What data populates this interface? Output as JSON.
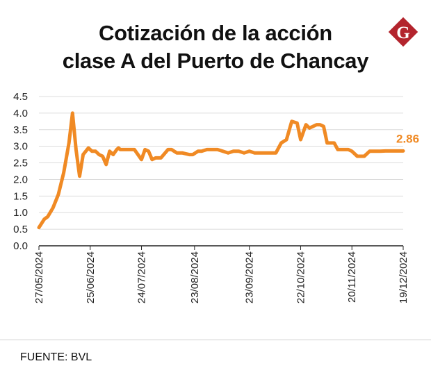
{
  "title_lines": [
    "Cotización de la acción",
    "clase A del Puerto de Chancay"
  ],
  "logo": {
    "letter": "G",
    "color": "#b3242d"
  },
  "source": "FUENTE: BVL",
  "colors": {
    "line": "#f08a24",
    "grid": "#dcdcdc",
    "axis": "#222222"
  },
  "chart_data": {
    "type": "line",
    "title": "Cotización de la acción clase A del Puerto de Chancay",
    "xlabel": "",
    "ylabel": "",
    "ylim": [
      0,
      4.5
    ],
    "yticks": [
      "0.0",
      "0.5",
      "1.0",
      "1.5",
      "2.0",
      "2.5",
      "3.0",
      "3.5",
      "4.0",
      "4.5"
    ],
    "xlim": [
      "2024-05-27",
      "2024-12-19"
    ],
    "xtick_labels": [
      {
        "date": "2024-05-27",
        "label": "27/05/2024"
      },
      {
        "date": "2024-06-25",
        "label": "25/06/2024"
      },
      {
        "date": "2024-07-24",
        "label": "24/07/2024"
      },
      {
        "date": "2024-08-23",
        "label": "23/08/2024"
      },
      {
        "date": "2024-09-23",
        "label": "23/09/2024"
      },
      {
        "date": "2024-10-22",
        "label": "22/10/2024"
      },
      {
        "date": "2024-11-20",
        "label": "20/11/2024"
      },
      {
        "date": "2024-12-19",
        "label": "19/12/2024"
      }
    ],
    "grid": true,
    "series": [
      {
        "x": [
          "2024-05-27",
          "2024-05-30",
          "2024-06-01",
          "2024-06-04",
          "2024-06-07",
          "2024-06-10",
          "2024-06-13",
          "2024-06-15",
          "2024-06-17",
          "2024-06-19",
          "2024-06-21",
          "2024-06-24",
          "2024-06-26",
          "2024-06-28",
          "2024-06-30",
          "2024-07-02",
          "2024-07-04",
          "2024-07-06",
          "2024-07-08",
          "2024-07-10",
          "2024-07-11",
          "2024-07-12",
          "2024-07-14",
          "2024-07-15",
          "2024-07-17",
          "2024-07-20",
          "2024-07-24",
          "2024-07-26",
          "2024-07-28",
          "2024-07-30",
          "2024-08-01",
          "2024-08-04",
          "2024-08-08",
          "2024-08-10",
          "2024-08-13",
          "2024-08-16",
          "2024-08-20",
          "2024-08-22",
          "2024-08-25",
          "2024-08-27",
          "2024-08-30",
          "2024-09-02",
          "2024-09-05",
          "2024-09-08",
          "2024-09-11",
          "2024-09-14",
          "2024-09-17",
          "2024-09-20",
          "2024-09-23",
          "2024-09-26",
          "2024-09-29",
          "2024-10-01",
          "2024-10-03",
          "2024-10-05",
          "2024-10-08",
          "2024-10-11",
          "2024-10-14",
          "2024-10-17",
          "2024-10-20",
          "2024-10-22",
          "2024-10-25",
          "2024-10-27",
          "2024-10-29",
          "2024-10-31",
          "2024-11-02",
          "2024-11-04",
          "2024-11-06",
          "2024-11-08",
          "2024-11-10",
          "2024-11-12",
          "2024-11-14",
          "2024-11-16",
          "2024-11-18",
          "2024-11-20",
          "2024-11-23",
          "2024-11-27",
          "2024-11-30",
          "2024-12-03",
          "2024-12-06",
          "2024-12-09",
          "2024-12-12",
          "2024-12-15",
          "2024-12-17",
          "2024-12-19"
        ],
        "y": [
          0.55,
          0.8,
          0.88,
          1.15,
          1.55,
          2.2,
          3.1,
          4.0,
          2.9,
          2.1,
          2.75,
          2.95,
          2.85,
          2.85,
          2.75,
          2.7,
          2.45,
          2.85,
          2.75,
          2.9,
          2.95,
          2.9,
          2.9,
          2.9,
          2.9,
          2.9,
          2.6,
          2.9,
          2.85,
          2.6,
          2.65,
          2.65,
          2.9,
          2.9,
          2.8,
          2.8,
          2.75,
          2.75,
          2.85,
          2.85,
          2.9,
          2.9,
          2.9,
          2.85,
          2.8,
          2.85,
          2.85,
          2.8,
          2.85,
          2.8,
          2.8,
          2.8,
          2.8,
          2.8,
          2.8,
          3.1,
          3.2,
          3.75,
          3.7,
          3.2,
          3.65,
          3.55,
          3.6,
          3.65,
          3.65,
          3.6,
          3.1,
          3.1,
          3.1,
          2.9,
          2.9,
          2.9,
          2.9,
          2.85,
          2.7,
          2.7,
          2.85,
          2.85,
          2.85,
          2.86,
          2.86,
          2.86,
          2.86,
          2.86
        ]
      }
    ],
    "annotations": [
      {
        "date": "2024-12-19",
        "value": 2.86,
        "text": "2.86"
      }
    ]
  }
}
